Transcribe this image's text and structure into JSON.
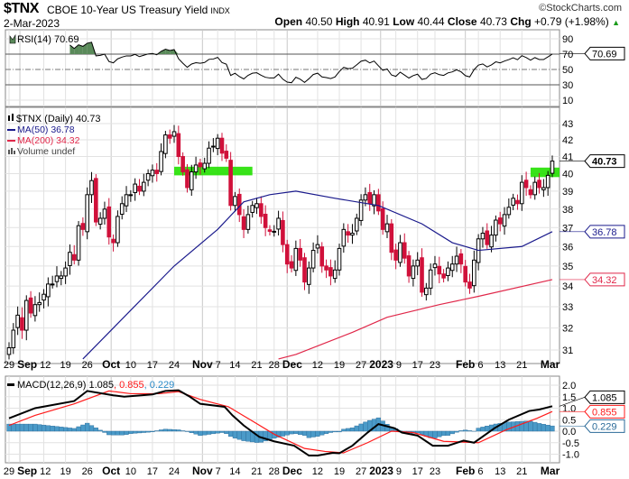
{
  "header": {
    "symbol": "$TNX",
    "name": "CBOE 10-Year US Treasury Yield",
    "exchange": "INDX",
    "brand": "©StockCharts.com",
    "date": "2-Mar-2023",
    "open_label": "Open",
    "open": "40.50",
    "high_label": "High",
    "high": "40.91",
    "low_label": "Low",
    "low": "40.44",
    "close_label": "Close",
    "close": "40.73",
    "chg_label": "Chg",
    "chg": "+0.79 (+1.98%)",
    "chg_arrow": "▲"
  },
  "colors": {
    "up": "#000000",
    "down": "#d0103a",
    "ma50": "#1a1a8c",
    "ma200": "#e0284a",
    "highlight": "#22e000",
    "rsi_fill": "#5a8a5a",
    "macd": "#000000",
    "signal": "#ff1a1a",
    "hist": "#4a9ac8"
  },
  "legends": {
    "rsi": "RSI(14) 70.69",
    "price": "$TNX (Daily) 40.73",
    "ma50": "MA(50) 36.78",
    "ma200": "MA(200) 34.32",
    "volume": "Volume undef",
    "macd_name": "MACD(12,26,9) 1.085",
    "macd_signal": ", 0.855",
    "macd_hist": ", 0.229"
  },
  "tags": {
    "price": "40.73",
    "ma50": "36.78",
    "ma200": "34.32",
    "rsi": "70.69",
    "macd": "1.085",
    "signal": "0.855",
    "hist": "0.229"
  },
  "chart_data": {
    "type": "candlestick",
    "title": "$TNX CBOE 10-Year US Treasury Yield (Daily)",
    "price_ticks": [
      31,
      32,
      33,
      34,
      35,
      36,
      37,
      38,
      39,
      40,
      41,
      42,
      43
    ],
    "rsi_ticks": [
      90,
      70,
      50,
      30,
      10
    ],
    "macd_ticks": [
      "2.0",
      "1.5",
      "1.0",
      "0.5",
      "0.0",
      "-0.5",
      "-1.0"
    ],
    "date_labels": [
      {
        "t": "29",
        "i": 0,
        "b": false
      },
      {
        "t": "Sep",
        "i": 2.5,
        "b": true
      },
      {
        "t": "12",
        "i": 8,
        "b": false
      },
      {
        "t": "19",
        "i": 13,
        "b": false
      },
      {
        "t": "26",
        "i": 18,
        "b": false
      },
      {
        "t": "Oct",
        "i": 23.5,
        "b": true
      },
      {
        "t": "10",
        "i": 28,
        "b": false
      },
      {
        "t": "17",
        "i": 33,
        "b": false
      },
      {
        "t": "24",
        "i": 38,
        "b": false
      },
      {
        "t": "Nov",
        "i": 44.5,
        "b": true
      },
      {
        "t": "7",
        "i": 48,
        "b": false
      },
      {
        "t": "14",
        "i": 52,
        "b": false
      },
      {
        "t": "21",
        "i": 57,
        "b": false
      },
      {
        "t": "28",
        "i": 61,
        "b": false
      },
      {
        "t": "Dec",
        "i": 64,
        "b": true
      },
      {
        "t": "12",
        "i": 71,
        "b": false
      },
      {
        "t": "19",
        "i": 76,
        "b": false
      },
      {
        "t": "27",
        "i": 81,
        "b": false
      },
      {
        "t": "2023",
        "i": 85.5,
        "b": true
      },
      {
        "t": "9",
        "i": 89,
        "b": false
      },
      {
        "t": "17",
        "i": 94,
        "b": false
      },
      {
        "t": "23",
        "i": 98,
        "b": false
      },
      {
        "t": "Feb",
        "i": 105,
        "b": true
      },
      {
        "t": "6",
        "i": 108,
        "b": false
      },
      {
        "t": "13",
        "i": 113,
        "b": false
      },
      {
        "t": "21",
        "i": 118,
        "b": false
      },
      {
        "t": "Mar",
        "i": 124.5,
        "b": true
      }
    ],
    "close": [
      31.1,
      31.9,
      32.6,
      31.9,
      33.3,
      32.7,
      33.1,
      33.2,
      33.6,
      34.1,
      34.1,
      34.5,
      34.5,
      34.9,
      35.7,
      35.3,
      37.1,
      36.9,
      38.8,
      39.6,
      37.3,
      37.5,
      38.0,
      36.5,
      36.2,
      37.6,
      38.3,
      38.8,
      38.8,
      39.4,
      39.0,
      39.5,
      40.0,
      40.2,
      40.0,
      41.3,
      42.3,
      42.1,
      42.5,
      41.0,
      40.1,
      39.2,
      40.1,
      40.5,
      40.4,
      40.6,
      41.5,
      41.6,
      42.1,
      41.2,
      40.9,
      38.2,
      38.7,
      37.7,
      36.9,
      37.7,
      38.2,
      38.3,
      37.6,
      37.0,
      36.8,
      36.8,
      37.5,
      36.1,
      35.1,
      34.9,
      35.9,
      35.3,
      34.2,
      34.9,
      35.8,
      36.1,
      35.0,
      34.8,
      34.5,
      34.8,
      35.9,
      36.9,
      36.6,
      36.7,
      37.5,
      38.5,
      38.8,
      38.3,
      38.8,
      37.9,
      36.9,
      37.2,
      35.7,
      35.3,
      36.2,
      35.4,
      34.5,
      35.0,
      35.3,
      33.7,
      33.9,
      34.8,
      35.1,
      34.6,
      34.4,
      34.9,
      35.1,
      35.5,
      35.1,
      34.2,
      33.9,
      35.3,
      36.4,
      36.7,
      36.1,
      36.6,
      37.4,
      37.2,
      37.7,
      38.1,
      38.6,
      38.3,
      39.5,
      39.2,
      38.8,
      39.5,
      39.2,
      39.2,
      39.9,
      40.73
    ],
    "ma50": [
      [
        17,
        30.6
      ],
      [
        38,
        35.0
      ],
      [
        48,
        36.9
      ],
      [
        54,
        38.4
      ],
      [
        60,
        38.8
      ],
      [
        66,
        39.0
      ],
      [
        75,
        38.6
      ],
      [
        85,
        38.2
      ],
      [
        95,
        37.2
      ],
      [
        102,
        36.2
      ],
      [
        108,
        35.8
      ],
      [
        118,
        36.0
      ],
      [
        125,
        36.78
      ]
    ],
    "ma200": [
      [
        62,
        30.6
      ],
      [
        66,
        30.8
      ],
      [
        79,
        31.8
      ],
      [
        87,
        32.5
      ],
      [
        99,
        33.1
      ],
      [
        108,
        33.5
      ],
      [
        125,
        34.32
      ]
    ],
    "highlight_zones": [
      {
        "from": 38,
        "to": 56,
        "low": 39.9,
        "high": 40.4
      },
      {
        "from": 120,
        "to": 127,
        "low": 39.8,
        "high": 40.35
      }
    ],
    "macd": [
      [
        0,
        0.56
      ],
      [
        6,
        1.0
      ],
      [
        15,
        1.31
      ],
      [
        18,
        1.75
      ],
      [
        24,
        1.56
      ],
      [
        26.5,
        1.5
      ],
      [
        33,
        1.6
      ],
      [
        36,
        1.75
      ],
      [
        39,
        1.78
      ],
      [
        41.6,
        1.5
      ],
      [
        44,
        1.19
      ],
      [
        49.6,
        1.06
      ],
      [
        51.4,
        0.69
      ],
      [
        54,
        0.25
      ],
      [
        57.6,
        -0.25
      ],
      [
        61,
        -0.44
      ],
      [
        65.6,
        -0.63
      ],
      [
        69,
        -1.06
      ],
      [
        71,
        -1.06
      ],
      [
        74.5,
        -0.94
      ],
      [
        76,
        -0.96
      ],
      [
        79,
        -0.63
      ],
      [
        82.5,
        -0.06
      ],
      [
        85,
        0.31
      ],
      [
        88.7,
        0.13
      ],
      [
        90.4,
        -0.06
      ],
      [
        94,
        -0.19
      ],
      [
        97.5,
        -0.63
      ],
      [
        101,
        -0.63
      ],
      [
        104.6,
        -0.41
      ],
      [
        107,
        -0.5
      ],
      [
        111.7,
        0.13
      ],
      [
        115,
        0.5
      ],
      [
        119.7,
        0.88
      ],
      [
        122,
        0.94
      ],
      [
        125,
        1.085
      ]
    ],
    "signal": [
      [
        0,
        0.25
      ],
      [
        6,
        0.69
      ],
      [
        15,
        1.19
      ],
      [
        23,
        1.75
      ],
      [
        28,
        1.63
      ],
      [
        34.5,
        1.63
      ],
      [
        39,
        1.72
      ],
      [
        44,
        1.38
      ],
      [
        50.5,
        1.06
      ],
      [
        56,
        0.44
      ],
      [
        61,
        -0.13
      ],
      [
        68,
        -0.75
      ],
      [
        72.7,
        -0.88
      ],
      [
        77,
        -0.94
      ],
      [
        82.5,
        -0.5
      ],
      [
        88,
        0.0
      ],
      [
        93,
        -0.06
      ],
      [
        100,
        -0.44
      ],
      [
        108,
        -0.5
      ],
      [
        114.4,
        0.06
      ],
      [
        121.5,
        0.56
      ],
      [
        125,
        0.855
      ]
    ]
  }
}
